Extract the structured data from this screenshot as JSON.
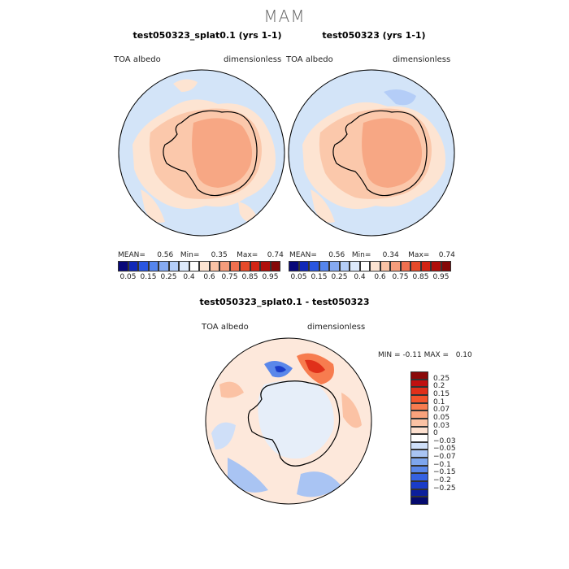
{
  "title": "MAM",
  "panels": [
    {
      "title": "test050323_splat0.1 (yrs 1-1)",
      "variable": "TOA albedo",
      "units": "dimensionless",
      "stats": {
        "mean_label": "MEAN=",
        "mean": "0.56",
        "min_label": "Min=",
        "min": "0.35",
        "max_label": "Max=",
        "max": "0.74"
      }
    },
    {
      "title": "test050323 (yrs 1-1)",
      "variable": "TOA albedo",
      "units": "dimensionless",
      "stats": {
        "mean_label": "MEAN=",
        "mean": "0.56",
        "min_label": "Min=",
        "min": "0.34",
        "max_label": "Max=",
        "max": "0.74"
      }
    }
  ],
  "abs_colorbar": {
    "labels": [
      "0.05",
      "0.15",
      "0.25",
      "0.4",
      "0.6",
      "0.75",
      "0.85",
      "0.95"
    ],
    "colors": [
      "#08087a",
      "#1028b8",
      "#2a56e0",
      "#5585ee",
      "#86aaf2",
      "#b4cdf7",
      "#dde9fb",
      "#ffffff",
      "#fde4d2",
      "#f9c2a5",
      "#f69d7c",
      "#f07050",
      "#e64a2a",
      "#d32414",
      "#b00e0a",
      "#850808"
    ]
  },
  "diff_panel": {
    "title": "test050323_splat0.1 - test050323",
    "variable": "TOA albedo",
    "units": "dimensionless",
    "stats": {
      "min_label": "MIN =",
      "min": "-0.11",
      "max_label": "MAX =",
      "max": "0.10"
    }
  },
  "diff_colorbar": {
    "labels": [
      "0.25",
      "0.2",
      "0.15",
      "0.1",
      "0.07",
      "0.05",
      "0.03",
      "0",
      "-0.03",
      "-0.05",
      "-0.07",
      "-0.1",
      "-0.15",
      "-0.2",
      "-0.25"
    ],
    "colors": [
      "#8b0a0a",
      "#c01010",
      "#e0301a",
      "#f2542c",
      "#f77c4f",
      "#f9a27c",
      "#fbc2a4",
      "#fde0cf",
      "#ffffff",
      "#cfdff8",
      "#a9c4f3",
      "#7ea6ee",
      "#5a87ea",
      "#3562e2",
      "#1a3cc8",
      "#0c1f9c",
      "#050a6e"
    ]
  }
}
